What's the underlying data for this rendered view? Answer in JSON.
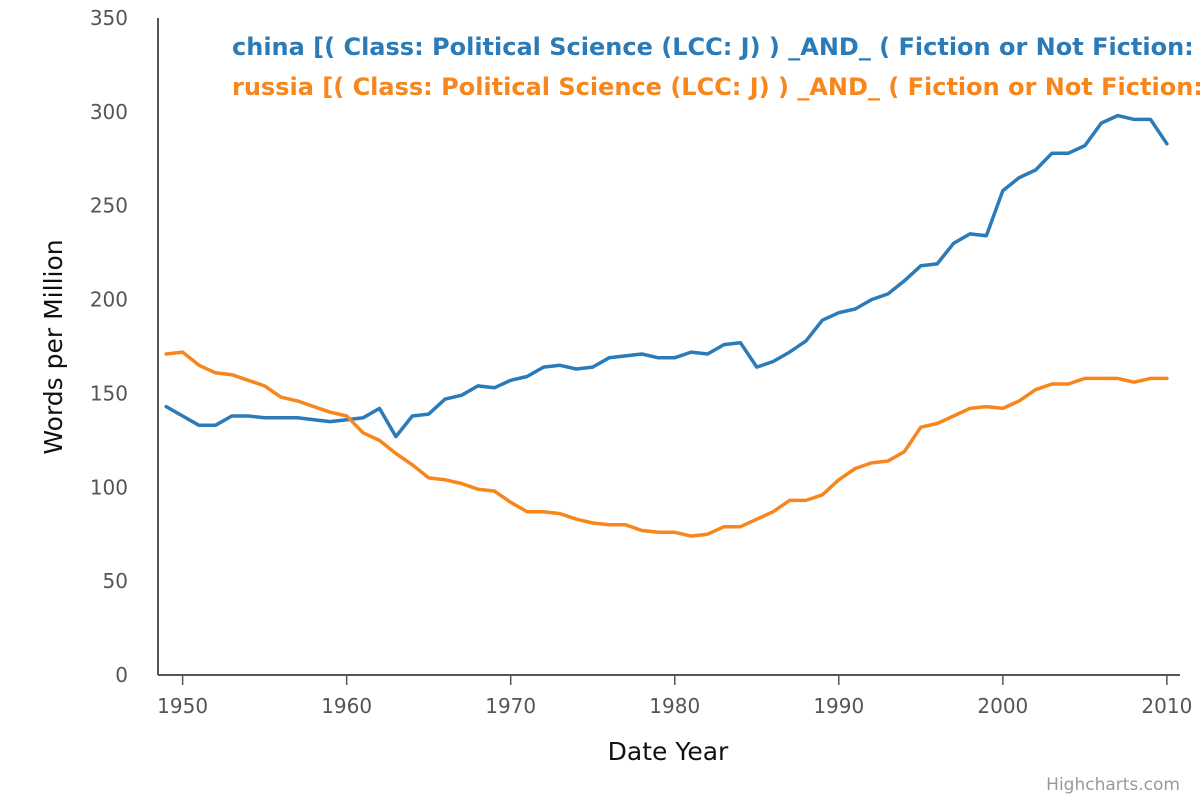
{
  "chart_data": {
    "type": "line",
    "title": "",
    "xlabel": "Date Year",
    "ylabel": "Words per Million",
    "xlim": [
      1948.5,
      2010.8
    ],
    "ylim": [
      0,
      350
    ],
    "x_ticks": [
      1950,
      1960,
      1970,
      1980,
      1990,
      2000,
      2010
    ],
    "y_ticks": [
      0,
      50,
      100,
      150,
      200,
      250,
      300,
      350
    ],
    "grid": false,
    "legend_position": "top",
    "credits": "Highcharts.com",
    "x": [
      1949,
      1950,
      1951,
      1952,
      1953,
      1954,
      1955,
      1956,
      1957,
      1958,
      1959,
      1960,
      1961,
      1962,
      1963,
      1964,
      1965,
      1966,
      1967,
      1968,
      1969,
      1970,
      1971,
      1972,
      1973,
      1974,
      1975,
      1976,
      1977,
      1978,
      1979,
      1980,
      1981,
      1982,
      1983,
      1984,
      1985,
      1986,
      1987,
      1988,
      1989,
      1990,
      1991,
      1992,
      1993,
      1994,
      1995,
      1996,
      1997,
      1998,
      1999,
      2000,
      2001,
      2002,
      2003,
      2004,
      2005,
      2006,
      2007,
      2008,
      2009,
      2010
    ],
    "series": [
      {
        "name": "china [( Class: Political Science (LCC: J) ) _AND_ ( Fiction or Not Fiction: Not fiction ) ]",
        "color": "#2b7bb9",
        "values": [
          143,
          138,
          133,
          133,
          138,
          138,
          137,
          137,
          137,
          136,
          135,
          136,
          137,
          142,
          127,
          138,
          139,
          147,
          149,
          154,
          153,
          157,
          159,
          164,
          165,
          163,
          164,
          169,
          170,
          171,
          169,
          169,
          172,
          171,
          176,
          177,
          164,
          167,
          172,
          178,
          189,
          193,
          195,
          200,
          203,
          210,
          218,
          219,
          230,
          235,
          234,
          258,
          265,
          269,
          278,
          278,
          282,
          294,
          298,
          296,
          296,
          283
        ]
      },
      {
        "name": "russia [( Class: Political Science (LCC: J) ) _AND_ ( Fiction or Not Fiction: Not fiction ) ]",
        "color": "#f7861c",
        "values": [
          171,
          172,
          165,
          161,
          160,
          157,
          154,
          148,
          146,
          143,
          140,
          138,
          129,
          125,
          118,
          112,
          105,
          104,
          102,
          99,
          98,
          92,
          87,
          87,
          86,
          83,
          81,
          80,
          80,
          77,
          76,
          76,
          74,
          75,
          79,
          79,
          83,
          87,
          93,
          93,
          96,
          104,
          110,
          113,
          114,
          119,
          132,
          134,
          138,
          142,
          143,
          142,
          146,
          152,
          155,
          155,
          158,
          158,
          158,
          156,
          158,
          158
        ]
      }
    ]
  }
}
